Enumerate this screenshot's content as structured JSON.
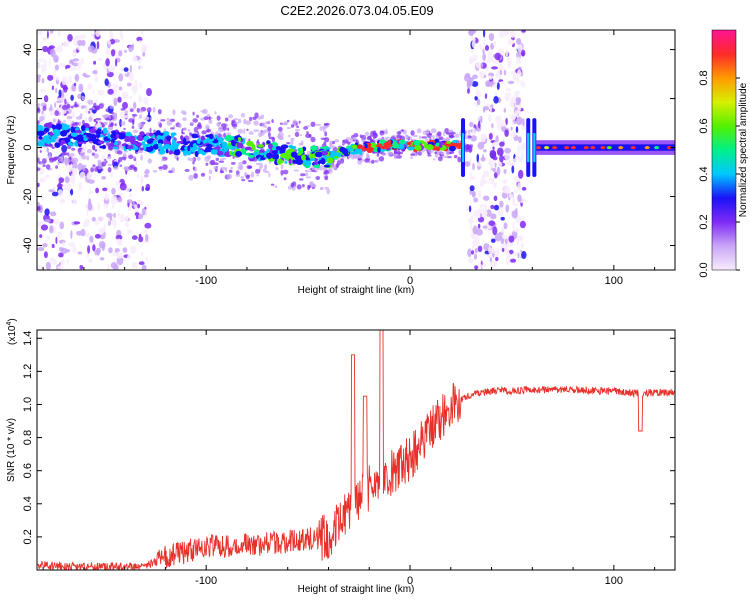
{
  "title": "C2E2.2026.073.04.05.E09",
  "chart_data": [
    {
      "type": "heatmap",
      "name": "spectrogram",
      "xlabel": "Height of straight line (km)",
      "ylabel": "Frequency (Hz)",
      "xlim": [
        -183,
        130
      ],
      "ylim": [
        -50,
        48
      ],
      "xticks": [
        -100,
        0,
        100
      ],
      "xtick_labels": [
        "-100",
        "0",
        "100"
      ],
      "yticks": [
        -40,
        -20,
        0,
        20,
        40
      ],
      "ytick_labels": [
        "-40",
        "-20",
        "0",
        "20",
        "40"
      ],
      "colorbar": {
        "label": "Normalized spectral amplitude",
        "range": [
          0,
          1
        ],
        "ticks": [
          0.0,
          0.2,
          0.4,
          0.6,
          0.8
        ],
        "tick_labels": [
          "0.0",
          "0.2",
          "0.4",
          "0.6",
          "0.8"
        ],
        "colors": [
          "#f8ecfb",
          "#c9a6f7",
          "#7f2af5",
          "#1a12f7",
          "#00c8ff",
          "#00f08a",
          "#54f000",
          "#d8f000",
          "#ff9a00",
          "#ff2a2a",
          "#ff1493"
        ]
      },
      "ridge": {
        "x": [
          -183,
          -160,
          -140,
          -120,
          -100,
          -80,
          -60,
          -50,
          -40,
          -30,
          -20,
          -10,
          0,
          10,
          20,
          25
        ],
        "y": [
          5,
          5,
          3,
          2,
          1,
          0,
          -3,
          -4,
          -4,
          -1,
          0,
          1,
          1,
          1,
          1,
          1
        ]
      },
      "bright_line": {
        "x_start": 62,
        "x_end": 130,
        "y": 0
      },
      "noise_bands": [
        {
          "x_start": -183,
          "x_end": -128
        },
        {
          "x_start": 28,
          "x_end": 56
        }
      ],
      "spikes": [
        26,
        58,
        61
      ]
    },
    {
      "type": "line",
      "name": "snr",
      "xlabel": "Height of straight line (km)",
      "ylabel": "SNR (10 * v/v)",
      "y_multiplier": "(x10",
      "y_multiplier_exp": "4",
      "y_multiplier_close": ")",
      "xlim": [
        -183,
        130
      ],
      "ylim": [
        0,
        1.45
      ],
      "xticks": [
        -100,
        0,
        100
      ],
      "xtick_labels": [
        "-100",
        "0",
        "100"
      ],
      "yticks": [
        0.2,
        0.4,
        0.6,
        0.8,
        1.0,
        1.2,
        1.4
      ],
      "ytick_labels": [
        "0.2",
        "0.4",
        "0.6",
        "0.8",
        "1.0",
        "1.2",
        "1.4"
      ],
      "color": "#e8302a",
      "series": [
        {
          "name": "SNR",
          "x": [
            -183,
            -150,
            -130,
            -120,
            -100,
            -80,
            -60,
            -40,
            -30,
            -20,
            -10,
            0,
            10,
            20,
            30,
            40,
            60,
            80,
            100,
            110,
            120,
            130
          ],
          "y": [
            0.03,
            0.02,
            0.02,
            0.08,
            0.14,
            0.15,
            0.17,
            0.2,
            0.35,
            0.5,
            0.58,
            0.68,
            0.85,
            1.0,
            1.06,
            1.08,
            1.09,
            1.09,
            1.08,
            1.07,
            1.07,
            1.08
          ]
        }
      ],
      "peaks": [
        {
          "x": -28,
          "y": 1.3
        },
        {
          "x": -14,
          "y": 1.45
        },
        {
          "x": -22,
          "y": 1.05
        },
        {
          "x": 113,
          "y": 0.84
        }
      ]
    }
  ]
}
